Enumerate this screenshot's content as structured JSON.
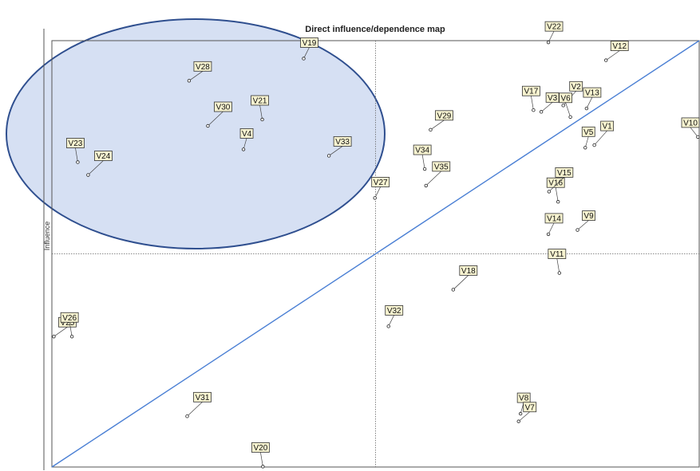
{
  "chart_data": {
    "type": "scatter",
    "title": "Direct influence/dependence map",
    "ylabel": "Influence",
    "xlabel": "",
    "xlim": [
      0,
      100
    ],
    "ylim": [
      0,
      100
    ],
    "grid": false,
    "quadrant_lines": {
      "x": 50,
      "y": 50
    },
    "diagonal": true,
    "highlight_region": "ellipse around upper-left quadrant",
    "colors": {
      "diagonal": "#4a7fd4",
      "ellipse_fill": "#d6e0f3",
      "ellipse_stroke": "#2f4f8f"
    },
    "points": [
      {
        "label": "V19",
        "x": 38.9,
        "y": 95.8
      },
      {
        "label": "V28",
        "x": 21.2,
        "y": 90.6
      },
      {
        "label": "V21",
        "x": 32.5,
        "y": 81.5
      },
      {
        "label": "V30",
        "x": 24.1,
        "y": 80.0
      },
      {
        "label": "V4",
        "x": 29.6,
        "y": 74.5
      },
      {
        "label": "V33",
        "x": 42.8,
        "y": 73.0
      },
      {
        "label": "V23",
        "x": 4.0,
        "y": 71.5
      },
      {
        "label": "V24",
        "x": 5.6,
        "y": 68.5
      },
      {
        "label": "V27",
        "x": 49.9,
        "y": 63.1
      },
      {
        "label": "V29",
        "x": 58.5,
        "y": 79.1
      },
      {
        "label": "V34",
        "x": 57.6,
        "y": 69.9
      },
      {
        "label": "V35",
        "x": 57.8,
        "y": 66.0
      },
      {
        "label": "V22",
        "x": 76.7,
        "y": 99.6
      },
      {
        "label": "V12",
        "x": 85.6,
        "y": 95.4
      },
      {
        "label": "V17",
        "x": 74.4,
        "y": 83.7
      },
      {
        "label": "V2",
        "x": 79.0,
        "y": 84.8
      },
      {
        "label": "V13",
        "x": 82.6,
        "y": 84.1
      },
      {
        "label": "V3",
        "x": 75.6,
        "y": 83.3
      },
      {
        "label": "V6",
        "x": 80.1,
        "y": 82.1
      },
      {
        "label": "V1",
        "x": 83.8,
        "y": 75.5
      },
      {
        "label": "V5",
        "x": 82.4,
        "y": 74.9
      },
      {
        "label": "V10",
        "x": 99.8,
        "y": 77.4
      },
      {
        "label": "V16",
        "x": 78.2,
        "y": 62.2
      },
      {
        "label": "V15",
        "x": 76.8,
        "y": 64.6
      },
      {
        "label": "V14",
        "x": 76.7,
        "y": 54.6
      },
      {
        "label": "V9",
        "x": 81.2,
        "y": 55.6
      },
      {
        "label": "V11",
        "x": 78.4,
        "y": 45.5
      },
      {
        "label": "V18",
        "x": 62.0,
        "y": 41.6
      },
      {
        "label": "V32",
        "x": 52.0,
        "y": 33.0
      },
      {
        "label": "V25",
        "x": 0.3,
        "y": 30.6
      },
      {
        "label": "V26",
        "x": 3.1,
        "y": 30.6
      },
      {
        "label": "V31",
        "x": 20.9,
        "y": 11.9
      },
      {
        "label": "V8",
        "x": 72.4,
        "y": 12.5
      },
      {
        "label": "V7",
        "x": 72.1,
        "y": 10.7
      },
      {
        "label": "V20",
        "x": 32.6,
        "y": 0.1
      }
    ]
  }
}
